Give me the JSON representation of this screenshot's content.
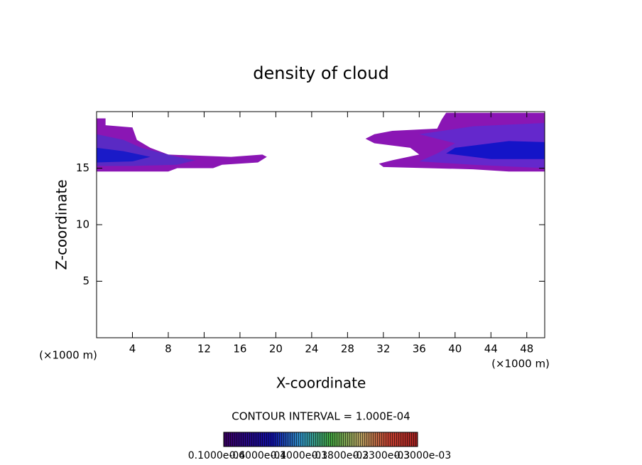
{
  "chart_data": {
    "type": "contour",
    "title": "density of cloud",
    "x_label": "X-coordinate",
    "y_label": "Z-coordinate",
    "x_unit": "(×1000 m)",
    "y_unit": "(×1000 m)",
    "xlim": [
      0,
      50
    ],
    "ylim": [
      0,
      20
    ],
    "xticks": [
      4,
      8,
      12,
      16,
      20,
      24,
      28,
      32,
      36,
      40,
      44,
      48
    ],
    "yticks": [
      5,
      10,
      15
    ],
    "contour_interval": "CONTOUR INTERVAL = 1.000E-04",
    "colorbar_labels": [
      "0.1000e-04",
      "0.6000e-04",
      "0.1000e-03",
      "0.1800e-03",
      "0.2300e-03",
      "0.3000e-03"
    ],
    "regions": [
      {
        "color": "#8a16b4",
        "x": [
          0,
          1,
          1,
          4,
          4.5,
          6,
          8,
          15,
          18.5,
          19,
          18,
          14,
          13,
          9,
          8,
          0
        ],
        "y": [
          19.4,
          19.4,
          18.8,
          18.6,
          17.5,
          16.8,
          16.2,
          16,
          16.2,
          16,
          15.5,
          15.3,
          15,
          15,
          14.7,
          14.7
        ]
      },
      {
        "color": "#5a2ac4",
        "x": [
          0,
          3,
          5,
          9,
          11,
          9,
          4,
          0
        ],
        "y": [
          18,
          17.5,
          16.8,
          16,
          15.7,
          15.3,
          15.2,
          15.2
        ]
      },
      {
        "color": "#1a1ac8",
        "x": [
          0,
          3,
          6,
          4,
          0
        ],
        "y": [
          16.8,
          16.5,
          16,
          15.6,
          15.5
        ]
      },
      {
        "color": "#8a16b4",
        "x": [
          30,
          31,
          33,
          38,
          38.5,
          39,
          50,
          50,
          46,
          42,
          32,
          31.5,
          33,
          36,
          35,
          31
        ],
        "y": [
          17.6,
          18,
          18.3,
          18.5,
          19.3,
          19.9,
          19.9,
          14.7,
          14.7,
          14.9,
          15.1,
          15.4,
          15.7,
          16.2,
          16.8,
          17.2
        ]
      },
      {
        "color": "#6428cc",
        "x": [
          36,
          42,
          50,
          50,
          42,
          36,
          38,
          40
        ],
        "y": [
          18,
          18.7,
          19,
          15,
          15.3,
          15.6,
          16.3,
          17.2
        ]
      },
      {
        "color": "#1414c8",
        "x": [
          40,
          46,
          50,
          50,
          44,
          39
        ],
        "y": [
          16.8,
          17.4,
          17.3,
          15.8,
          15.8,
          16.3
        ]
      }
    ]
  }
}
